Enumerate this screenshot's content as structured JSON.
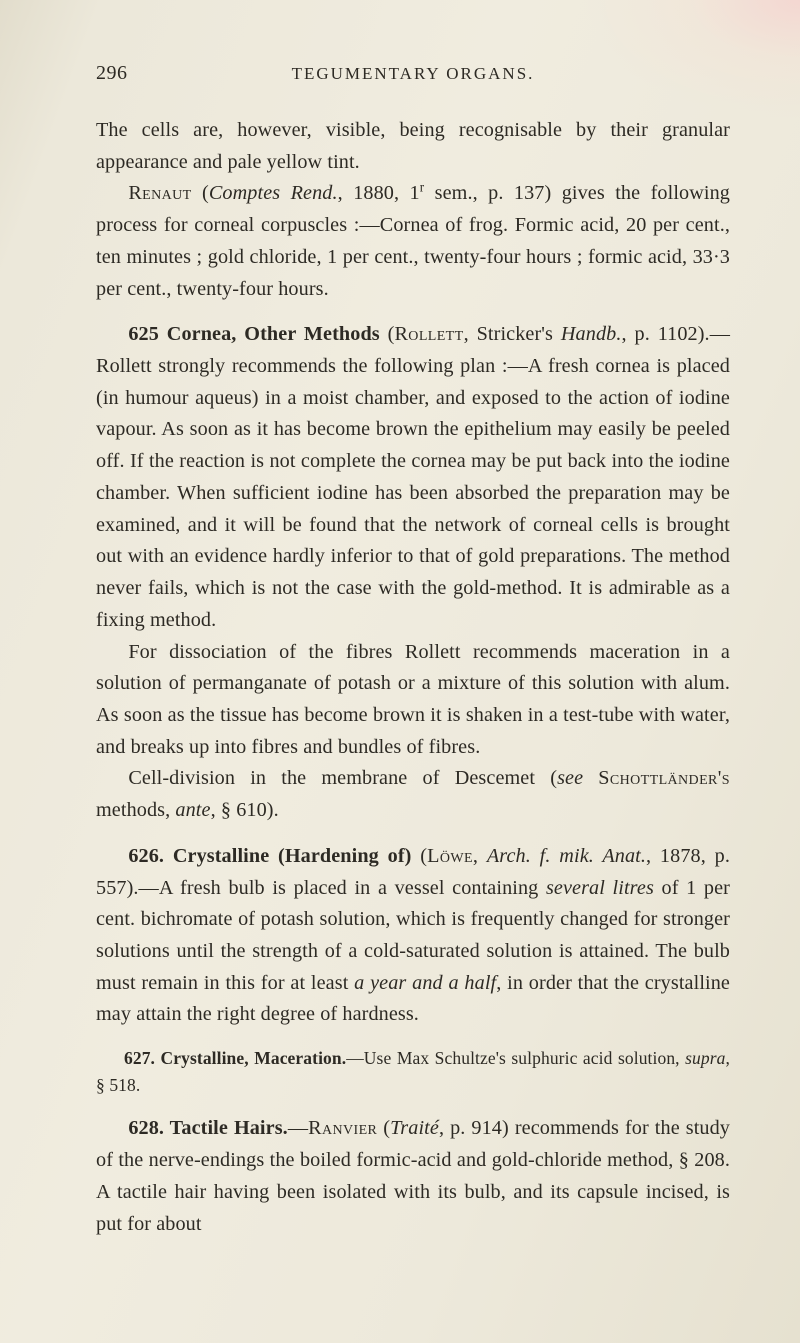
{
  "page_number": "296",
  "running_head": "TEGUMENTARY ORGANS.",
  "para1": "The cells are, however, visible, being recognisable by their granular appearance and pale yellow tint.",
  "para2_a": "Renaut",
  "para2_b": " (",
  "para2_c": "Comptes Rend.",
  "para2_d": ", 1880, 1",
  "para2_sup": "r",
  "para2_e": " sem., p. 137) gives the fol­lowing process for corneal corpuscles :—Cornea of frog. Formic acid, 20 per cent., ten minutes ; gold chloride, 1 per cent., twenty-four hours ; formic acid, 33·3 per cent., twenty-four hours.",
  "s625_num": "625",
  "s625_title": " Cornea, Other Methods",
  "s625_a": " (",
  "s625_sc1": "Rollett",
  "s625_b": ", Stricker's ",
  "s625_it1": "Handb.",
  "s625_c": ", p. 1102).—Rollett strongly recommends the following plan :—A fresh cornea is placed (in humour aqueus) in a moist chamber, and exposed to the action of iodine vapour.  As soon as it has become brown the epithelium may easily be peeled off.  If the reaction is not complete the cornea may be put back into the iodine chamber.  When sufficient iodine has been absorbed the preparation may be examined, and it will be found that the network of corneal cells is brought out with an evidence hardly inferior to that of gold preparations.  The method never fails, which is not the case with the gold-method.  It is admirable as a fixing method.",
  "s625_p2": "For dissociation of the fibres Rollett recommends macera­tion in a solution of permanganate of potash or a mixture of this solution with alum.  As soon as the tissue has become brown it is shaken in a test-tube with water, and breaks up into fibres and bundles of fibres.",
  "s625_p3_a": "Cell-division in the membrane of Descemet (",
  "s625_p3_it1": "see",
  "s625_p3_b": " ",
  "s625_p3_sc": "Schott­länder's",
  "s625_p3_c": " methods, ",
  "s625_p3_it2": "ante",
  "s625_p3_d": ", § 610).",
  "s626_num": "626.",
  "s626_title": " Crystalline (Hardening of)",
  "s626_a": " (",
  "s626_sc1": "Löwe",
  "s626_b": ", ",
  "s626_it1": "Arch. f. mik. Anat.",
  "s626_c": ", 1878, p. 557).—A fresh bulb is placed in a vessel containing ",
  "s626_it2": "several litres",
  "s626_d": " of 1 per cent. bichromate of potash solution, which is frequently changed for stronger solutions until the strength of a cold-saturated solution is attained.  The bulb must remain in this for at least ",
  "s626_it3": "a year and a half",
  "s626_e": ", in order that the crystalline may attain the right degree of hardness.",
  "s627_num": "627.",
  "s627_title": " Crystalline, Maceration.",
  "s627_a": "—Use Max Schultze's sulphuric acid solution, ",
  "s627_it": "supra",
  "s627_b": ", § 518.",
  "s628_num": "628.",
  "s628_title": " Tactile Hairs.",
  "s628_a": "—",
  "s628_sc1": "Ranvier",
  "s628_b": " (",
  "s628_it1": "Traité",
  "s628_c": ", p. 914) recommends for the study of the nerve-endings the boiled formic-acid and gold-chloride method, § 208.  A tactile hair having been isolated with its bulb, and its capsule incised, is put for about"
}
